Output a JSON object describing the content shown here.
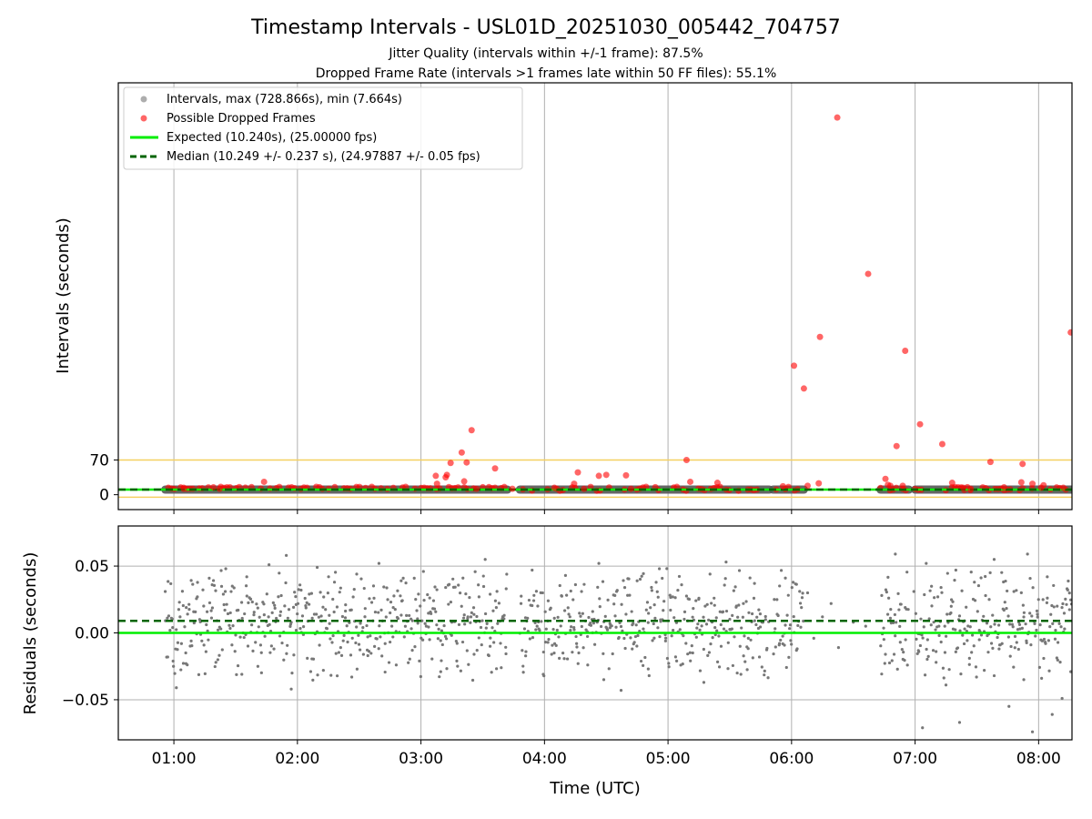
{
  "chart_data": [
    {
      "type": "scatter",
      "title": "Timestamp Intervals - USL01D_20251030_005442_704757",
      "subtitle_lines": [
        "Jitter Quality (intervals within +/-1 frame): 87.5%",
        "Dropped Frame Rate (intervals >1 frames late within 50 FF files): 55.1%"
      ],
      "xlabel": "",
      "ylabel": "Intervals (seconds)",
      "x_unit": "hours UTC",
      "xlim": [
        0.55,
        8.27
      ],
      "ylim": [
        -30,
        830
      ],
      "yticks": [
        0,
        70
      ],
      "xticks": [
        1,
        2,
        3,
        4,
        5,
        6,
        7,
        8
      ],
      "xtick_labels": [
        "01:00",
        "02:00",
        "03:00",
        "04:00",
        "05:00",
        "06:00",
        "07:00",
        "08:00"
      ],
      "show_xtick_labels": false,
      "grid_x": true,
      "threshold_lines": [
        -5,
        70
      ],
      "legend": {
        "placement": "upper-left",
        "entries": [
          "Intervals, max (728.866s), min (7.664s)",
          "Possible Dropped Frames",
          "Expected (10.240s), (25.00000 fps)",
          "Median (10.249 +/- 0.237 s), (24.97887 +/- 0.05 fps)"
        ]
      },
      "intervals_band": {
        "segments": [
          [
            0.93,
            3.7
          ],
          [
            3.8,
            5.82
          ],
          [
            5.85,
            6.1
          ],
          [
            6.72,
            6.95
          ],
          [
            7.0,
            8.27
          ]
        ],
        "value": 10.24,
        "color": "#555555"
      },
      "expected": {
        "value": 10.24,
        "color": "#00ee00"
      },
      "median": {
        "value": 10.249,
        "color": "#006400"
      },
      "dropped_frames": {
        "color": "#ff0000",
        "points": [
          [
            1.08,
            12
          ],
          [
            1.32,
            15
          ],
          [
            1.37,
            12
          ],
          [
            1.73,
            26
          ],
          [
            3.12,
            38
          ],
          [
            3.13,
            22
          ],
          [
            3.2,
            35
          ],
          [
            3.21,
            40
          ],
          [
            3.24,
            64
          ],
          [
            3.33,
            85
          ],
          [
            3.35,
            27
          ],
          [
            3.37,
            65
          ],
          [
            3.41,
            130
          ],
          [
            3.45,
            12
          ],
          [
            3.6,
            53
          ],
          [
            3.74,
            12
          ],
          [
            4.08,
            14
          ],
          [
            4.24,
            22
          ],
          [
            4.27,
            45
          ],
          [
            4.32,
            12
          ],
          [
            4.44,
            38
          ],
          [
            4.5,
            40
          ],
          [
            4.66,
            39
          ],
          [
            4.7,
            12
          ],
          [
            5.15,
            70
          ],
          [
            5.18,
            26
          ],
          [
            5.4,
            24
          ],
          [
            5.93,
            17
          ],
          [
            6.02,
            260
          ],
          [
            6.1,
            214
          ],
          [
            6.13,
            18
          ],
          [
            6.22,
            23
          ],
          [
            6.23,
            318
          ],
          [
            6.37,
            760
          ],
          [
            6.62,
            445
          ],
          [
            6.76,
            32
          ],
          [
            6.78,
            20
          ],
          [
            6.8,
            18
          ],
          [
            6.85,
            98
          ],
          [
            6.9,
            18
          ],
          [
            6.92,
            290
          ],
          [
            7.04,
            142
          ],
          [
            7.22,
            102
          ],
          [
            7.3,
            24
          ],
          [
            7.39,
            14
          ],
          [
            7.45,
            12
          ],
          [
            7.61,
            66
          ],
          [
            7.72,
            15
          ],
          [
            7.86,
            25
          ],
          [
            7.87,
            62
          ],
          [
            7.95,
            22
          ],
          [
            8.02,
            14
          ],
          [
            8.04,
            19
          ],
          [
            8.2,
            14
          ],
          [
            8.26,
            327
          ]
        ]
      }
    },
    {
      "type": "scatter",
      "title": "",
      "xlabel": "Time (UTC)",
      "ylabel": "Residuals (seconds)",
      "xlim": [
        0.55,
        8.27
      ],
      "ylim": [
        -0.08,
        0.08
      ],
      "yticks": [
        0.05,
        0.0,
        -0.05
      ],
      "ytick_labels": [
        "0.05",
        "0.00",
        "−0.05"
      ],
      "xticks": [
        1,
        2,
        3,
        4,
        5,
        6,
        7,
        8
      ],
      "xtick_labels": [
        "01:00",
        "02:00",
        "03:00",
        "04:00",
        "05:00",
        "06:00",
        "07:00",
        "08:00"
      ],
      "grid_x": true,
      "grid_y": true,
      "expected": {
        "value": 0.0,
        "color": "#00ee00"
      },
      "median": {
        "value": 0.009,
        "color": "#006400"
      },
      "residual_color": "#777777",
      "data_segments": [
        [
          0.93,
          3.7
        ],
        [
          3.8,
          5.82
        ],
        [
          5.85,
          6.1
        ],
        [
          6.72,
          6.95
        ],
        [
          7.0,
          8.27
        ]
      ],
      "residual_points": [
        [
          0.93,
          0.031
        ],
        [
          0.95,
          -0.018
        ],
        [
          0.99,
          0.004
        ],
        [
          1.02,
          -0.041
        ],
        [
          1.05,
          0.012
        ],
        [
          1.1,
          0.019
        ],
        [
          1.14,
          -0.006
        ],
        [
          1.19,
          0.027
        ],
        [
          1.22,
          0.009
        ],
        [
          1.26,
          -0.014
        ],
        [
          1.31,
          0.036
        ],
        [
          1.34,
          -0.022
        ],
        [
          1.38,
          0.003
        ],
        [
          1.42,
          0.048
        ],
        [
          1.47,
          -0.009
        ],
        [
          1.52,
          0.017
        ],
        [
          1.55,
          -0.031
        ],
        [
          1.59,
          0.042
        ],
        [
          1.63,
          0.006
        ],
        [
          1.68,
          -0.025
        ],
        [
          1.72,
          0.023
        ],
        [
          1.77,
          0.051
        ],
        [
          1.81,
          -0.012
        ],
        [
          1.86,
          0.013
        ],
        [
          1.91,
          0.058
        ],
        [
          1.95,
          -0.042
        ],
        [
          1.99,
          0.002
        ],
        [
          2.03,
          0.032
        ],
        [
          2.08,
          -0.019
        ],
        [
          2.12,
          0.011
        ],
        [
          2.16,
          0.049
        ],
        [
          2.21,
          -0.028
        ],
        [
          2.26,
          0.007
        ],
        [
          2.3,
          0.038
        ],
        [
          2.35,
          -0.011
        ],
        [
          2.39,
          0.021
        ],
        [
          2.44,
          -0.033
        ],
        [
          2.48,
          0.044
        ],
        [
          2.53,
          0.004
        ],
        [
          2.57,
          -0.017
        ],
        [
          2.62,
          0.026
        ],
        [
          2.66,
          0.052
        ],
        [
          2.71,
          -0.008
        ],
        [
          2.75,
          0.015
        ],
        [
          2.8,
          -0.024
        ],
        [
          2.84,
          0.039
        ],
        [
          2.89,
          0.001
        ],
        [
          2.93,
          -0.013
        ],
        [
          2.98,
          0.029
        ],
        [
          3.02,
          0.046
        ],
        [
          3.07,
          -0.005
        ],
        [
          3.11,
          0.018
        ],
        [
          3.16,
          -0.029
        ],
        [
          3.2,
          0.034
        ],
        [
          3.25,
          0.008
        ],
        [
          3.29,
          -0.021
        ],
        [
          3.34,
          0.041
        ],
        [
          3.38,
          0.012
        ],
        [
          3.43,
          -0.016
        ],
        [
          3.47,
          0.027
        ],
        [
          3.52,
          0.055
        ],
        [
          3.56,
          -0.01
        ],
        [
          3.61,
          0.019
        ],
        [
          3.65,
          -0.026
        ],
        [
          3.69,
          0.033
        ],
        [
          3.81,
          0.022
        ],
        [
          3.85,
          -0.014
        ],
        [
          3.9,
          0.047
        ],
        [
          3.94,
          0.005
        ],
        [
          3.99,
          -0.031
        ],
        [
          4.03,
          0.024
        ],
        [
          4.08,
          0.011
        ],
        [
          4.12,
          -0.019
        ],
        [
          4.17,
          0.043
        ],
        [
          4.21,
          0.002
        ],
        [
          4.26,
          -0.008
        ],
        [
          4.3,
          0.031
        ],
        [
          4.35,
          -0.024
        ],
        [
          4.39,
          0.016
        ],
        [
          4.44,
          0.052
        ],
        [
          4.48,
          -0.035
        ],
        [
          4.53,
          0.007
        ],
        [
          4.57,
          0.028
        ],
        [
          4.62,
          -0.043
        ],
        [
          4.66,
          0.014
        ],
        [
          4.71,
          -0.012
        ],
        [
          4.75,
          0.039
        ],
        [
          4.8,
          0.003
        ],
        [
          4.84,
          -0.027
        ],
        [
          4.89,
          0.021
        ],
        [
          4.93,
          0.048
        ],
        [
          4.98,
          -0.006
        ],
        [
          5.02,
          0.017
        ],
        [
          5.07,
          -0.021
        ],
        [
          5.11,
          0.036
        ],
        [
          5.16,
          0.009
        ],
        [
          5.2,
          -0.015
        ],
        [
          5.25,
          0.026
        ],
        [
          5.29,
          -0.037
        ],
        [
          5.34,
          0.044
        ],
        [
          5.38,
          0.004
        ],
        [
          5.43,
          -0.01
        ],
        [
          5.47,
          0.053
        ],
        [
          5.52,
          0.013
        ],
        [
          5.56,
          -0.03
        ],
        [
          5.61,
          0.022
        ],
        [
          5.65,
          -0.004
        ],
        [
          5.7,
          0.037
        ],
        [
          5.74,
          -0.018
        ],
        [
          5.79,
          0.01
        ],
        [
          5.86,
          0.025
        ],
        [
          5.9,
          -0.009
        ],
        [
          5.95,
          0.041
        ],
        [
          5.99,
          0.006
        ],
        [
          6.04,
          -0.013
        ],
        [
          6.08,
          0.019
        ],
        [
          6.13,
          0.03
        ],
        [
          6.18,
          -0.004
        ],
        [
          6.25,
          0.012
        ],
        [
          6.32,
          0.022
        ],
        [
          6.38,
          -0.011
        ],
        [
          6.5,
          0.008
        ],
        [
          6.6,
          0.005
        ],
        [
          6.73,
          0.028
        ],
        [
          6.76,
          -0.016
        ],
        [
          6.8,
          0.011
        ],
        [
          6.84,
          0.059
        ],
        [
          6.88,
          -0.007
        ],
        [
          6.92,
          0.019
        ],
        [
          6.99,
          0.031
        ],
        [
          7.03,
          -0.014
        ],
        [
          7.06,
          -0.071
        ],
        [
          7.09,
          0.052
        ],
        [
          7.13,
          0.006
        ],
        [
          7.17,
          -0.022
        ],
        [
          7.21,
          0.034
        ],
        [
          7.25,
          -0.039
        ],
        [
          7.29,
          0.015
        ],
        [
          7.33,
          0.047
        ],
        [
          7.36,
          -0.067
        ],
        [
          7.4,
          0.009
        ],
        [
          7.44,
          -0.019
        ],
        [
          7.48,
          0.038
        ],
        [
          7.52,
          0.002
        ],
        [
          7.56,
          -0.028
        ],
        [
          7.6,
          0.025
        ],
        [
          7.64,
          0.055
        ],
        [
          7.68,
          -0.012
        ],
        [
          7.72,
          0.017
        ],
        [
          7.76,
          -0.055
        ],
        [
          7.8,
          0.031
        ],
        [
          7.84,
          0.008
        ],
        [
          7.88,
          -0.035
        ],
        [
          7.91,
          0.059
        ],
        [
          7.95,
          -0.074
        ],
        [
          7.99,
          0.014
        ],
        [
          8.03,
          -0.006
        ],
        [
          8.07,
          0.042
        ],
        [
          8.11,
          -0.061
        ],
        [
          8.15,
          0.02
        ],
        [
          8.19,
          -0.049
        ],
        [
          8.23,
          0.033
        ],
        [
          8.26,
          -0.029
        ]
      ]
    }
  ]
}
